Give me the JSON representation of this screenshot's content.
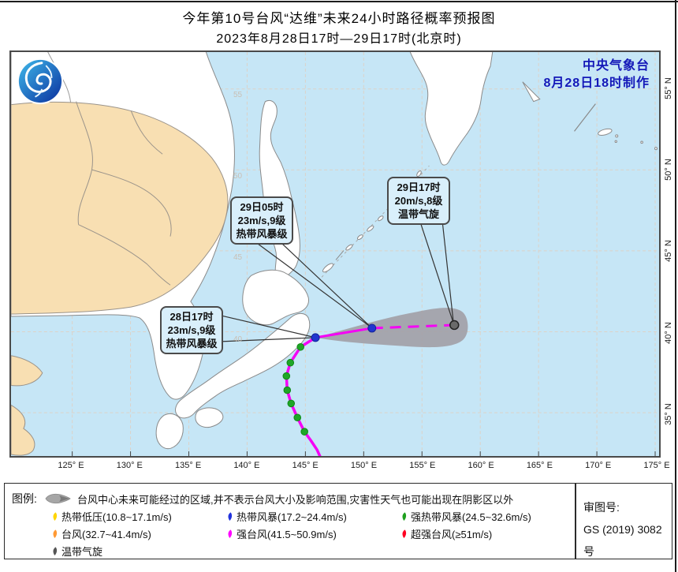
{
  "title": {
    "line1": "今年第10号台风“达维”未来24小时路径概率预报图",
    "line2": "2023年8月28日17时—29日17时(北京时)"
  },
  "agency": {
    "name": "中央气象台",
    "issued": "8月28日18时制作"
  },
  "map": {
    "inmap_lat_labels": [
      "55",
      "50",
      "45",
      "40"
    ],
    "axes": {
      "longitude": [
        "125° E",
        "130° E",
        "135° E",
        "140° E",
        "145° E",
        "150° E",
        "155° E",
        "160° E",
        "165° E",
        "170° E",
        "175° E"
      ],
      "latitude": [
        "55° N",
        "50° N",
        "45° N",
        "40° N",
        "35° N"
      ]
    },
    "callouts": [
      {
        "time": "28日17时",
        "wind": "23m/s,9级",
        "category": "热带风暴级"
      },
      {
        "time": "29日05时",
        "wind": "23m/s,9级",
        "category": "热带风暴级"
      },
      {
        "time": "29日17时",
        "wind": "20m/s,8级",
        "category": "温带气旋"
      }
    ],
    "colors": {
      "sea": "#c6e6f6",
      "land": "#ffffff",
      "land_china": "#f8dfb2",
      "track": "#f500f5",
      "cone": "#a09da4",
      "past_point": "#1fa627",
      "forecast_point": "#2036cf",
      "extratropical_point": "#6a6a6a"
    }
  },
  "legend": {
    "title": "图例:",
    "cone_note": "台风中心未来可能经过的区域,并不表示台风大小及影响范围,灾害性天气也可能出现在阴影区以外",
    "rows": [
      [
        {
          "label": "热带低压(10.8~17.1m/s)",
          "color": "#ffd500"
        },
        {
          "label": "热带风暴(17.2~24.4m/s)",
          "color": "#2233dd"
        },
        {
          "label": "强热带风暴(24.5~32.6m/s)",
          "color": "#1fa01f"
        }
      ],
      [
        {
          "label": "台风(32.7~41.4m/s)",
          "color": "#ff9933"
        },
        {
          "label": "强台风(41.5~50.9m/s)",
          "color": "#ff00ff"
        },
        {
          "label": "超强台风(≥51m/s)",
          "color": "#ff0022"
        }
      ],
      [
        {
          "label": "温带气旋",
          "color": "#555555"
        }
      ]
    ],
    "approval": {
      "label": "审图号:",
      "number": "GS (2019) 3082号"
    }
  }
}
